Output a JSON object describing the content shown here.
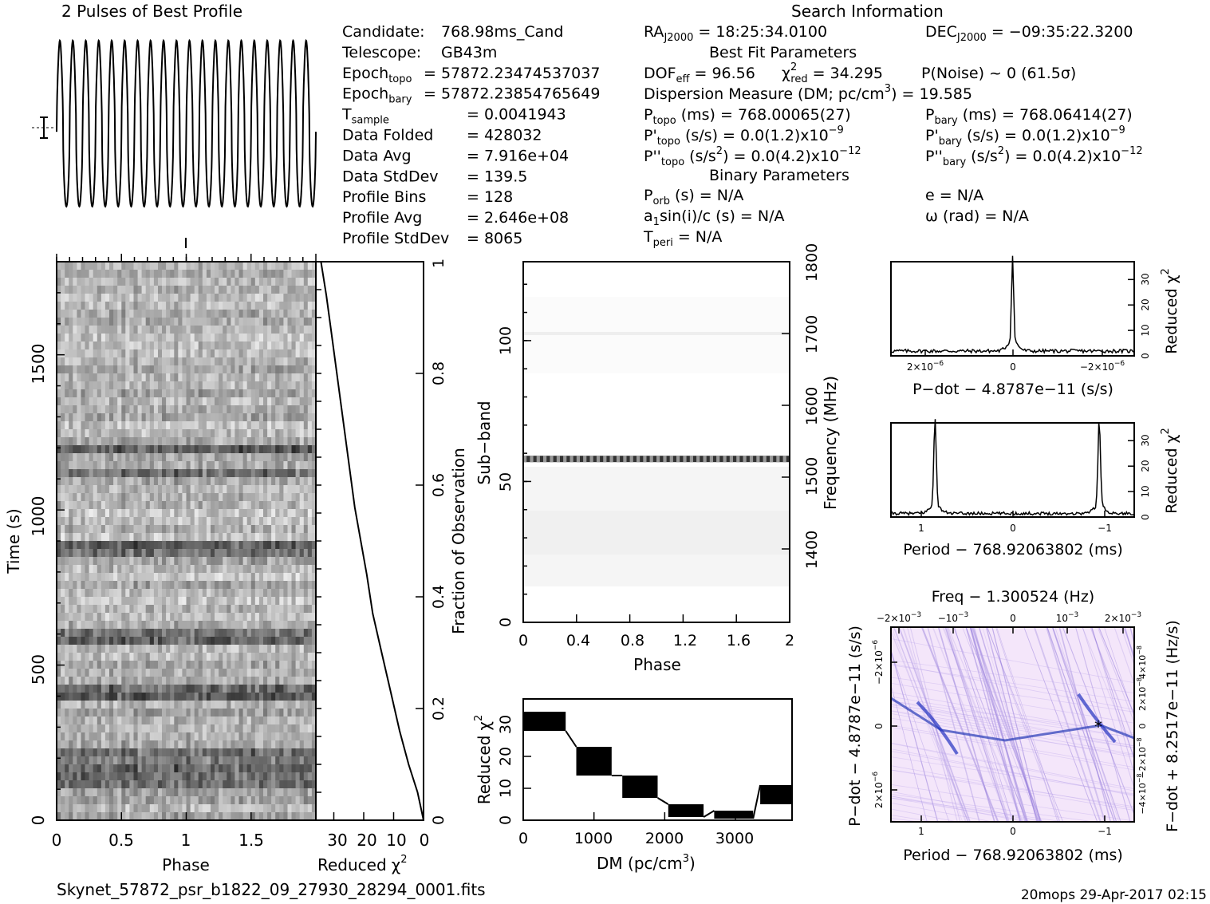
{
  "header": {
    "profile_title": "2 Pulses of Best Profile",
    "search_title": "Search Information",
    "filename": "Skynet_57872_psr_b1822_09_27930_28294_0001.fits",
    "footer_stamp": "20mops 29-Apr-2017 02:15"
  },
  "candidate_info": [
    {
      "label": "Candidate:",
      "value": "768.98ms_Cand"
    },
    {
      "label": "Telescope:",
      "value": "GB43m"
    },
    {
      "label": "Epoch",
      "sub": "topo",
      "value": "= 57872.23474537037"
    },
    {
      "label": "Epoch",
      "sub": "bary",
      "value": "= 57872.23854765649"
    },
    {
      "label": "T",
      "sub": "sample",
      "value": "=   0.0041943"
    },
    {
      "label": "Data Folded",
      "value": "=   428032"
    },
    {
      "label": "Data Avg",
      "value": "=   7.916e+04"
    },
    {
      "label": "Data StdDev",
      "value": "=   139.5"
    },
    {
      "label": "Profile Bins",
      "value": "=   128"
    },
    {
      "label": "Profile Avg",
      "value": "=   2.646e+08"
    },
    {
      "label": "Profile StdDev",
      "value": "=   8065"
    }
  ],
  "search_info": {
    "ra_label": "RA",
    "ra_sub": "J2000",
    "ra_value": "= 18:25:34.0100",
    "dec_label": "DEC",
    "dec_sub": "J2000",
    "dec_value": "= −09:35:22.3200",
    "best_fit_title": "Best Fit Parameters",
    "dof_label": "DOF",
    "dof_sub": "eff",
    "dof_value": "= 96.56",
    "chi_label": "χ",
    "chi_sup": "2",
    "chi_sub": "red",
    "chi_value": "= 34.295",
    "pnoise": "P(Noise) ~ 0   (61.5σ)",
    "dm_text": "Dispersion Measure (DM; pc/cm",
    "dm_sup": "3",
    "dm_value": ") = 19.585",
    "ptopo_label": "P",
    "ptopo_sub": "topo",
    "ptopo_value": "(ms) =  768.00065(27)",
    "pbary_label": "P",
    "pbary_sub": "bary",
    "pbary_value": "(ms) =  768.06414(27)",
    "pdtopo_label": "P'",
    "pdtopo_sub": "topo",
    "pdtopo_value": "(s/s) = 0.0(1.2)x10",
    "pdtopo_exp": "−9",
    "pdbary_label": "P'",
    "pdbary_sub": "bary",
    "pdbary_value": "(s/s) = 0.0(1.2)x10",
    "pdbary_exp": "−9",
    "pddtopo_label": "P''",
    "pddtopo_sub": "topo",
    "pddtopo_value": "(s/s",
    "pddtopo_unit_sup": "2",
    "pddtopo_value2": ") = 0.0(4.2)x10",
    "pddtopo_exp": "−12",
    "pddbary_label": "P''",
    "pddbary_sub": "bary",
    "pddbary_value": "(s/s",
    "pddbary_unit_sup": "2",
    "pddbary_value2": ") = 0.0(4.2)x10",
    "pddbary_exp": "−12",
    "binary_title": "Binary Parameters",
    "porb_label": "P",
    "porb_sub": "orb",
    "porb_value": "(s) = N/A",
    "ecc": "e = N/A",
    "a1_label": "a",
    "a1_sub": "1",
    "a1_value": "sin(i)/c (s) = N/A",
    "omega": "ω (rad) = N/A",
    "tperi_label": "T",
    "tperi_sub": "peri",
    "tperi_value": "= N/A"
  },
  "chart_data": [
    {
      "type": "line",
      "id": "profile",
      "title": "2 Pulses of Best Profile",
      "x": [
        0,
        2
      ],
      "cycles": 20,
      "note": "profile shows rapid oscillation over two pulses"
    },
    {
      "type": "heatmap",
      "id": "time-phase",
      "xlabel": "Phase",
      "ylabel": "Time (s)",
      "xlim": [
        0,
        2
      ],
      "ylim": [
        0,
        1800
      ],
      "xticks": [
        "0",
        "0.5",
        "1",
        "1.5"
      ],
      "yticks": [
        "0",
        "500",
        "1000",
        "1500"
      ],
      "colormap": "grayscale",
      "dark_bands_time_s": [
        120,
        150,
        210,
        410,
        590,
        880,
        1120,
        1200
      ]
    },
    {
      "type": "line",
      "id": "reduced-chi2-vs-time",
      "xlabel": "Reduced",
      "xlabel_sym": "χ",
      "xlabel_sup": "2",
      "xticks": [
        "30",
        "20",
        "10",
        "0"
      ],
      "right_label": "Fraction of Observation",
      "right_ticks": [
        "0",
        "0.2",
        "0.4",
        "0.6",
        "0.8",
        "1"
      ],
      "x": [
        0,
        2,
        5,
        8,
        11,
        14,
        17,
        19,
        21,
        23,
        25,
        27,
        29,
        31,
        32.5,
        34.3
      ],
      "y": [
        0,
        0.05,
        0.1,
        0.16,
        0.23,
        0.3,
        0.37,
        0.44,
        0.5,
        0.56,
        0.64,
        0.72,
        0.8,
        0.88,
        0.94,
        1.0
      ]
    },
    {
      "type": "heatmap",
      "id": "subband-phase",
      "xlabel": "Phase",
      "ylabel": "Sub−band",
      "right_label": "Frequency (MHz)",
      "xlim": [
        0,
        2
      ],
      "ylim": [
        0,
        128
      ],
      "xticks": [
        "0",
        "0.4",
        "0.8",
        "1.2",
        "1.6",
        "2"
      ],
      "yticks": [
        "0",
        "50",
        "100"
      ],
      "right_ticks": [
        "1400",
        "1500",
        "1600",
        "1700",
        "1800"
      ],
      "strong_subband": 58
    },
    {
      "type": "area",
      "id": "dm-chi2",
      "xlabel": "DM (pc/cm",
      "xlabel_sup": "3",
      "xlabel_end": ")",
      "ylabel": "Reduced",
      "ylabel_sym": "χ",
      "ylabel_sup": "2",
      "xlim": [
        0,
        3800
      ],
      "ylim": [
        0,
        38
      ],
      "xticks": [
        "0",
        "1000",
        "2000",
        "3000"
      ],
      "yticks": [
        "0",
        "10",
        "20",
        "30"
      ],
      "segments": [
        {
          "x0": 0,
          "x1": 600,
          "lo": 28,
          "hi": 34
        },
        {
          "x0": 750,
          "x1": 1250,
          "lo": 14,
          "hi": 23
        },
        {
          "x0": 1400,
          "x1": 1900,
          "lo": 7,
          "hi": 14
        },
        {
          "x0": 2050,
          "x1": 2550,
          "lo": 1,
          "hi": 5
        },
        {
          "x0": 2700,
          "x1": 3250,
          "lo": 0.5,
          "hi": 3
        },
        {
          "x0": 3350,
          "x1": 3800,
          "lo": 5,
          "hi": 11
        }
      ]
    },
    {
      "type": "line",
      "id": "pdot-chi2",
      "xlabel": "P−dot − 4.8787e−11 (s/s)",
      "ylabel": "Reduced",
      "ylabel_sym": "χ",
      "ylabel_sup": "2",
      "xticks": [
        "2×10",
        "0",
        "−2×10"
      ],
      "xtick_exp": "−6",
      "yticks": [
        "0",
        "10",
        "20",
        "30"
      ],
      "peak_value": 34
    },
    {
      "type": "line",
      "id": "period-chi2",
      "xlabel": "Period − 768.92063802 (ms)",
      "ylabel": "Reduced",
      "ylabel_sym": "χ",
      "ylabel_sup": "2",
      "xticks": [
        "1",
        "0",
        "−1"
      ],
      "yticks": [
        "0",
        "10",
        "20",
        "30"
      ],
      "peaks": [
        {
          "x": 0.85,
          "value": 34
        },
        {
          "x": -0.94,
          "value": 34
        }
      ]
    },
    {
      "type": "heatmap",
      "id": "period-pdot-plane",
      "title": "Freq − 1.300524 (Hz)",
      "xlabel": "Period − 768.92063802 (ms)",
      "ylabel": "P−dot − 4.8787e−11 (s/s)",
      "right_label": "F−dot + 8.2517e−11 (Hz/s)",
      "top_ticks": [
        "−2×10",
        "−10",
        "0",
        "10",
        "2×10"
      ],
      "top_tick_exp": "−3",
      "bottom_ticks": [
        "1",
        "0",
        "−1"
      ],
      "left_ticks": [
        "−2×10",
        "0",
        "2×10"
      ],
      "left_tick_exp": "−6",
      "right_ticks": [
        "4×10",
        "2×10",
        "0",
        "−2×10",
        "−4×10"
      ],
      "right_tick_exp": "−8",
      "colormap": "white-violet-blue",
      "best_marker": "*"
    }
  ]
}
